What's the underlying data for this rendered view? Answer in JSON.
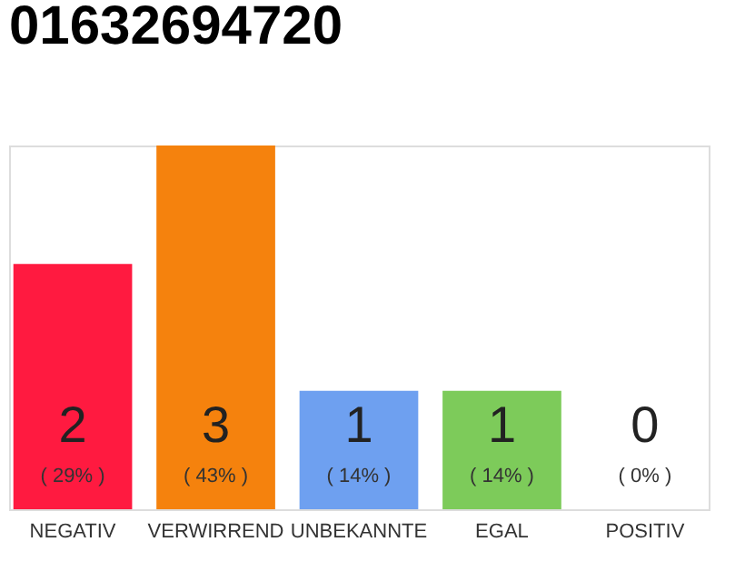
{
  "chart_data": {
    "type": "bar",
    "title": "01632694720",
    "categories": [
      "NEGATIV",
      "VERWIRREND",
      "UNBEKANNTE",
      "EGAL",
      "POSITIV"
    ],
    "values": [
      29,
      43,
      14,
      14,
      0
    ],
    "colors": [
      "#ff1a40",
      "#f5820d",
      "#6ea0f0",
      "#7dcb5a",
      "#cccccc"
    ],
    "value_labels": [
      "( 29% )",
      "( 43% )",
      "( 14% )",
      "( 14% )",
      "( 0% )"
    ],
    "annotations": [
      "2",
      "3",
      "1",
      "1",
      "0"
    ],
    "tick_labels": "x",
    "grid": false
  }
}
